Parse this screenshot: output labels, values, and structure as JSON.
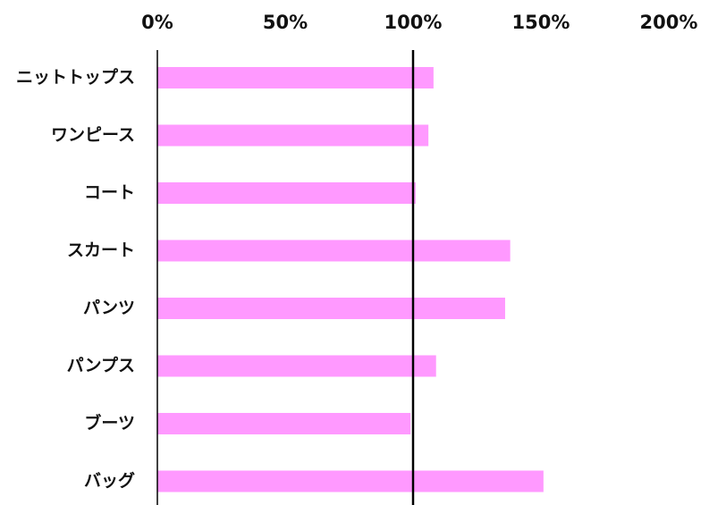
{
  "chart_data": {
    "type": "bar",
    "orientation": "horizontal",
    "title": "",
    "xlabel": "",
    "ylabel": "",
    "x_ticks": [
      "0%",
      "50%",
      "100%",
      "150%",
      "200%"
    ],
    "x_axis_position": "top",
    "xlim": [
      0,
      200
    ],
    "reference_line": 100,
    "grid": false,
    "categories": [
      "ニットトップス",
      "ワンピース",
      "コート",
      "スカート",
      "パンツ",
      "パンプス",
      "ブーツ",
      "バッグ"
    ],
    "values": [
      108,
      106,
      101,
      138,
      136,
      109,
      99,
      151
    ],
    "colors": {
      "bar": "#ff99ff",
      "axis": "#000000",
      "text": "#111111"
    }
  }
}
